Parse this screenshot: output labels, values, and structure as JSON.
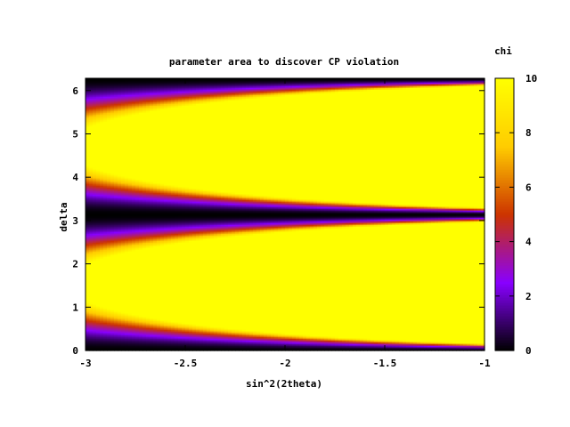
{
  "chart_data": {
    "type": "heatmap",
    "title": "parameter area to discover CP violation",
    "xlabel": "sin^2(2theta)",
    "ylabel": "delta",
    "colorbar_label": "chi",
    "xlim": [
      -3,
      -1
    ],
    "ylim": [
      0,
      6.283
    ],
    "zlim": [
      0,
      10
    ],
    "x_ticks": [
      -3,
      -2.5,
      -2,
      -1.5,
      -1
    ],
    "x_tick_labels": [
      "-3",
      "-2.5",
      "-2",
      "-1.5",
      "-1"
    ],
    "y_ticks": [
      0,
      1,
      2,
      3,
      4,
      5,
      6
    ],
    "y_tick_labels": [
      "0",
      "1",
      "2",
      "3",
      "4",
      "5",
      "6"
    ],
    "colorbar_ticks": [
      0,
      2,
      4,
      6,
      8,
      10
    ],
    "colorbar_tick_labels": [
      "0",
      "2",
      "4",
      "6",
      "8",
      "10"
    ],
    "colormap": [
      "#000000",
      "#8800ff",
      "#cc3300",
      "#ffcc00",
      "#ffff00"
    ],
    "description_of_values": "chi is high (>=10, yellow) over most of the plane; it drops to 0 near delta = 0, pi and 2*pi; the low-chi bands narrow as sin^2(2theta) increases from -3 to -1"
  }
}
